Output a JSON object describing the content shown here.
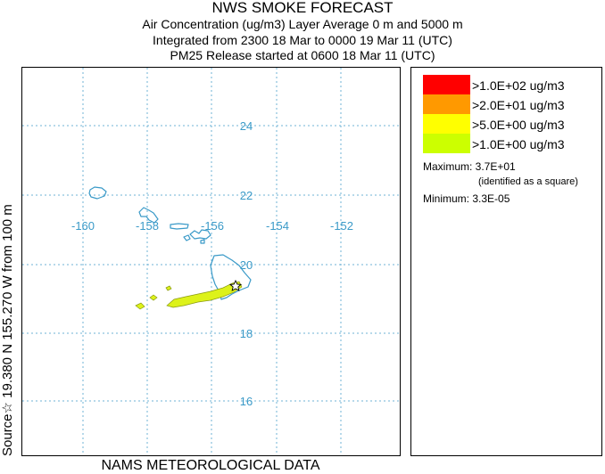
{
  "header": {
    "title": "NWS SMOKE FORECAST",
    "line1": "Air Concentration (ug/m3) Layer Average    0 m and  5000 m",
    "line2": "Integrated from 2300 18 Mar to 0000 19 Mar 11 (UTC)",
    "line3": "PM25 Release started at 0600 18 Mar 11 (UTC)"
  },
  "side_label": "Source☆ 19.380  N 155.270  W     from   100 m",
  "footer": "NAMS METEOROLOGICAL DATA",
  "map": {
    "lon_labels": [
      "-160",
      "-158",
      "-156",
      "-154",
      "-152"
    ],
    "lat_labels": [
      "24",
      "22",
      "20",
      "18",
      "16"
    ],
    "gridline_color": "#6fb3d6",
    "coast_color": "#3a9ac8",
    "label_color": "#3a9ac8"
  },
  "legend": {
    "items": [
      {
        "label": ">1.0E+02 ug/m3",
        "color": "#ff0000"
      },
      {
        "label": ">2.0E+01 ug/m3",
        "color": "#ff9900"
      },
      {
        "label": ">5.0E+00 ug/m3",
        "color": "#ffff00"
      },
      {
        "label": ">1.0E+00 ug/m3",
        "color": "#ccff00"
      }
    ],
    "maximum_label": "Maximum: 3.7E+01",
    "identified_note": "(identified as a square)",
    "minimum_label": "Minimum: 3.3E-05"
  },
  "smoke_color": "#ddf21a"
}
